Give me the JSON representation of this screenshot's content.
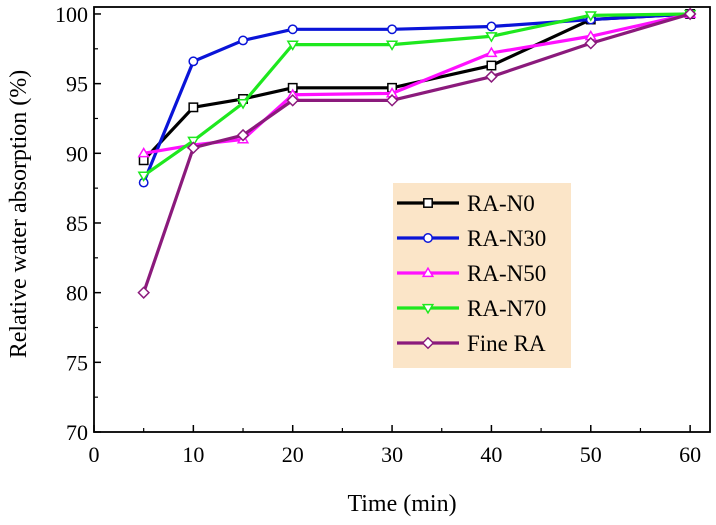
{
  "chart_data": {
    "type": "line",
    "title": "",
    "xlabel": "Time (min)",
    "ylabel": "Relative water absorption (%)",
    "xlim": [
      0,
      62
    ],
    "ylim": [
      70,
      100.5
    ],
    "xticks": [
      0,
      10,
      20,
      30,
      40,
      50,
      60
    ],
    "yticks": [
      70,
      75,
      80,
      85,
      90,
      95,
      100
    ],
    "grid": false,
    "legend_position": "center-right",
    "legend_background": "#fbe5c8",
    "x": [
      5,
      10,
      15,
      20,
      30,
      40,
      50,
      60
    ],
    "series": [
      {
        "name": "RA-N0",
        "color": "#000000",
        "marker": "square",
        "values": [
          89.5,
          93.3,
          93.9,
          94.7,
          94.7,
          96.3,
          99.6,
          100
        ]
      },
      {
        "name": "RA-N30",
        "color": "#0a14d8",
        "marker": "circle",
        "values": [
          87.9,
          96.6,
          98.1,
          98.9,
          98.9,
          99.1,
          99.6,
          100
        ]
      },
      {
        "name": "RA-N50",
        "color": "#ff10ff",
        "marker": "triangle-up",
        "values": [
          90.0,
          90.6,
          91.0,
          94.2,
          94.3,
          97.2,
          98.4,
          100
        ]
      },
      {
        "name": "RA-N70",
        "color": "#1ee81e",
        "marker": "triangle-down",
        "values": [
          88.4,
          90.9,
          93.6,
          97.8,
          97.8,
          98.4,
          99.9,
          100
        ]
      },
      {
        "name": "Fine RA",
        "color": "#8b1a7c",
        "marker": "diamond",
        "values": [
          80.0,
          90.4,
          91.3,
          93.8,
          93.8,
          95.5,
          97.9,
          100
        ]
      }
    ]
  }
}
